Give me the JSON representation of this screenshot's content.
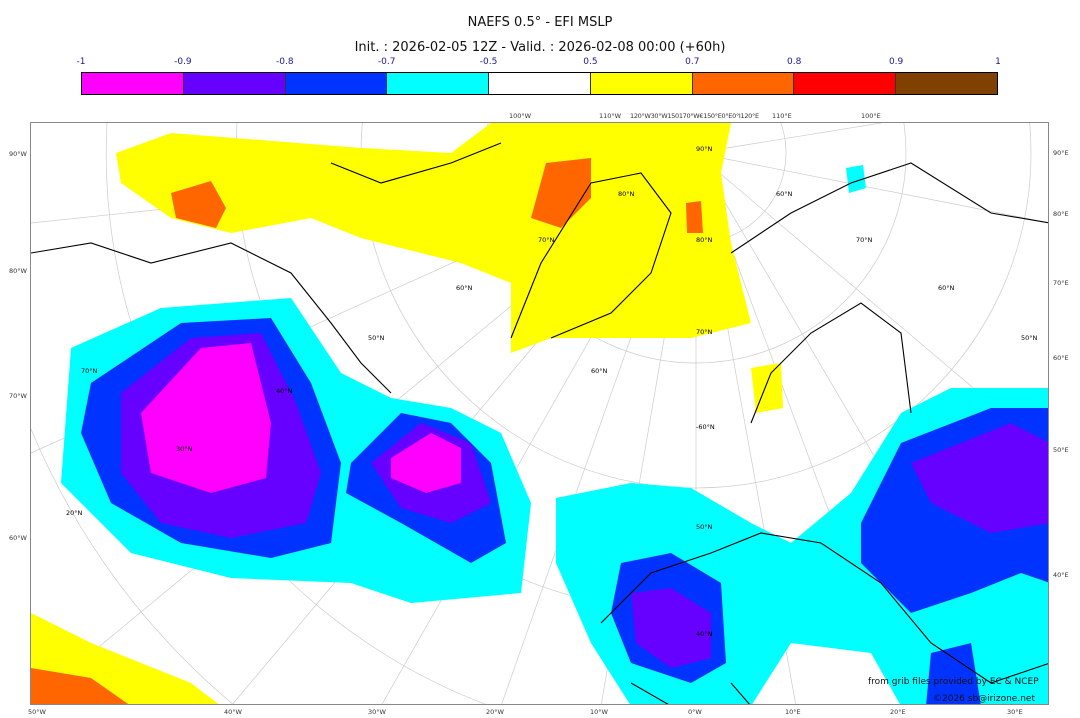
{
  "title": "NAEFS 0.5° - EFI MSLP",
  "subtitle": "Init. : 2026-02-05 12Z - Valid. : 2026-02-08 00:00 (+60h)",
  "colorbar": {
    "ticks": [
      "-1",
      "-0.9",
      "-0.8",
      "-0.7",
      "-0.5",
      "0.5",
      "0.7",
      "0.8",
      "0.9",
      "1"
    ],
    "colors": [
      "#ff00ff",
      "#6600ff",
      "#0033ff",
      "#00ffff",
      "#ffffff",
      "#ffff00",
      "#ff6600",
      "#ff0000",
      "#804000"
    ]
  },
  "axes": {
    "top": [
      "100°W",
      "110°W",
      "120°W30°W150170°W€150°E0°E0°I120°E",
      "110°E",
      "100°E"
    ],
    "left": [
      "90°W",
      "80°W",
      "70°W",
      "60°W"
    ],
    "right": [
      "90°E",
      "80°E",
      "70°E",
      "60°E",
      "50°E",
      "40°E"
    ],
    "bottom": [
      "50°W",
      "40°W",
      "30°W",
      "20°W",
      "10°W",
      "0°W",
      "10°E",
      "20°E",
      "30°E"
    ]
  },
  "map_labels": [
    "90°N",
    "80°N",
    "70°N",
    "60°N",
    "50°N",
    "40°N",
    "30°N",
    "20°N",
    "80°N",
    "70°N",
    "60°N",
    "50°N",
    "40°N",
    "70°N",
    "60°N",
    "50°N",
    "-60°N",
    "60°N",
    "70°N"
  ],
  "credits": {
    "line1": "from grib files provided by EC & NCEP",
    "line2": "©2026 sb@irizone.net"
  }
}
